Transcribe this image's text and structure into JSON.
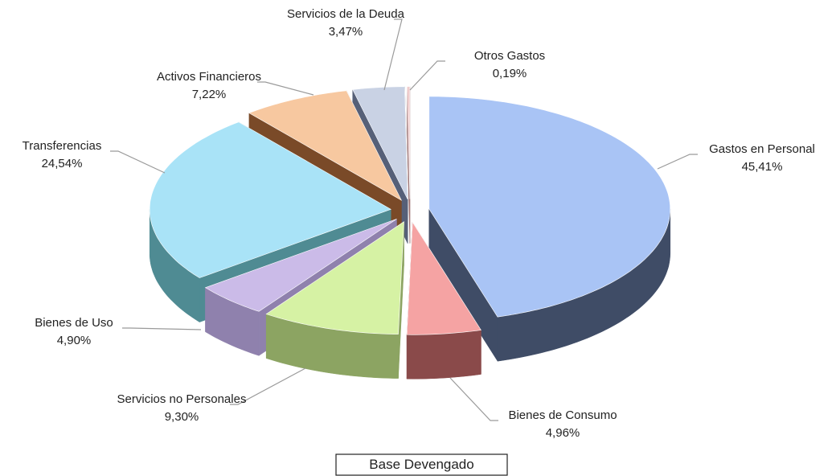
{
  "chart_data": {
    "type": "pie3d",
    "categories": [
      "Gastos en Personal",
      "Bienes de Consumo",
      "Servicios no Personales",
      "Bienes de Uso",
      "Transferencias",
      "Activos Financieros",
      "Servicios de la Deuda",
      "Otros Gastos"
    ],
    "values": [
      45.41,
      4.96,
      9.3,
      4.9,
      24.54,
      7.22,
      3.47,
      0.19
    ],
    "value_labels": [
      "45,41%",
      "4,96%",
      "9,30%",
      "4,90%",
      "24,54%",
      "7,22%",
      "3,47%",
      "0,19%"
    ],
    "colors": [
      "#a9c4f5",
      "#f5a3a3",
      "#d6f2a4",
      "#cbbbe8",
      "#a9e3f7",
      "#f7c8a0",
      "#c9d2e4",
      "#f0cccc"
    ],
    "side_colors": [
      "#3f4c66",
      "#8a4a4a",
      "#8ca462",
      "#8f81ad",
      "#4f8b93",
      "#7a4a28",
      "#566078",
      "#9a7070"
    ],
    "caption": "Base  Devengado"
  }
}
